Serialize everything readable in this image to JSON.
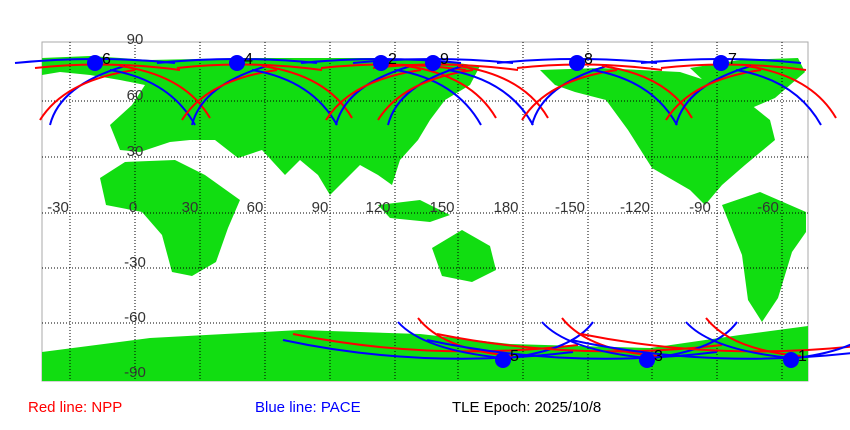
{
  "map": {
    "latitude_labels": [
      "90",
      "60",
      "30",
      "-30",
      "-60",
      "-90"
    ],
    "longitude_labels": [
      "-30",
      "0",
      "30",
      "60",
      "90",
      "120",
      "150",
      "180",
      "-150",
      "-120",
      "-90",
      "-60"
    ],
    "satellite_markers": [
      "6",
      "4",
      "2",
      "9",
      "8",
      "7",
      "5",
      "3",
      "1"
    ]
  },
  "legend": {
    "red": "Red line: NPP",
    "blue": "Blue line: PACE",
    "epoch": "TLE Epoch: 2025/10/8"
  }
}
